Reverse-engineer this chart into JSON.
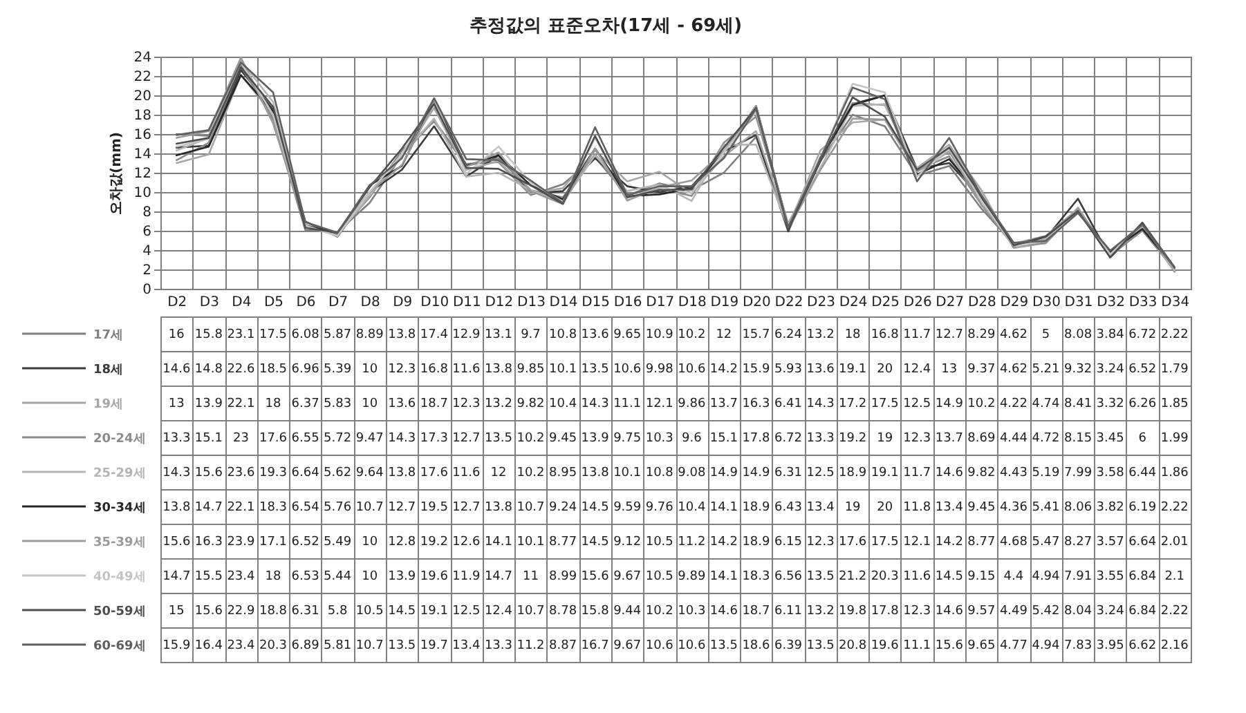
{
  "chart_data": {
    "type": "line",
    "title": "추정값의 표준오차(17세 - 69세)",
    "ylabel": "오차값(mm)",
    "categories": [
      "D2",
      "D3",
      "D4",
      "D5",
      "D6",
      "D7",
      "D8",
      "D9",
      "D10",
      "D11",
      "D12",
      "D13",
      "D14",
      "D15",
      "D16",
      "D17",
      "D18",
      "D19",
      "D20",
      "D22",
      "D23",
      "D24",
      "D25",
      "D26",
      "D27",
      "D28",
      "D29",
      "D30",
      "D31",
      "D32",
      "D33",
      "D34"
    ],
    "ylim": [
      0,
      24
    ],
    "yticks": [
      0,
      2,
      4,
      6,
      8,
      10,
      12,
      14,
      16,
      18,
      20,
      22,
      24
    ],
    "grid": true,
    "legend": "bottom left",
    "data_labels": true,
    "marker": "none",
    "line_style": "solid",
    "series": [
      {
        "name": "17세",
        "color": "#7f7f7f",
        "values": [
          16,
          15.8,
          23.1,
          17.5,
          6.08,
          5.87,
          8.89,
          13.8,
          17.4,
          12.9,
          13.1,
          9.7,
          10.8,
          13.6,
          9.65,
          10.9,
          10.2,
          12,
          15.7,
          6.24,
          13.2,
          18,
          16.8,
          11.7,
          12.7,
          8.29,
          4.62,
          5,
          8.08,
          3.84,
          6.72,
          2.22
        ]
      },
      {
        "name": "18세",
        "color": "#3a3a3a",
        "values": [
          14.6,
          14.8,
          22.6,
          18.5,
          6.96,
          5.39,
          10,
          12.3,
          16.8,
          11.6,
          13.8,
          9.85,
          10.1,
          13.5,
          10.6,
          9.98,
          10.6,
          14.2,
          15.9,
          5.93,
          13.6,
          19.1,
          20,
          12.4,
          13,
          9.37,
          4.62,
          5.21,
          9.32,
          3.24,
          6.52,
          1.79
        ]
      },
      {
        "name": "19세",
        "color": "#a6a6a6",
        "values": [
          13,
          13.9,
          22.1,
          18,
          6.37,
          5.83,
          10,
          13.6,
          18.7,
          12.3,
          13.2,
          9.82,
          10.4,
          14.3,
          11.1,
          12.1,
          9.86,
          13.7,
          16.3,
          6.41,
          14.3,
          17.2,
          17.5,
          12.5,
          14.9,
          10.2,
          4.22,
          4.74,
          8.41,
          3.32,
          6.26,
          1.85
        ]
      },
      {
        "name": "20-24세",
        "color": "#8c8c8c",
        "values": [
          13.3,
          15.1,
          23,
          17.6,
          6.55,
          5.72,
          9.47,
          14.3,
          17.3,
          12.7,
          13.5,
          10.2,
          9.45,
          13.9,
          9.75,
          10.3,
          9.6,
          15.1,
          17.8,
          6.72,
          13.3,
          19.2,
          19,
          12.3,
          13.7,
          8.69,
          4.44,
          4.72,
          8.15,
          3.45,
          6,
          1.99
        ]
      },
      {
        "name": "25-29세",
        "color": "#b4b4b4",
        "values": [
          14.3,
          15.6,
          23.6,
          19.3,
          6.64,
          5.62,
          9.64,
          13.8,
          17.6,
          11.6,
          12,
          10.2,
          8.95,
          13.8,
          10.1,
          10.8,
          9.08,
          14.9,
          14.9,
          6.31,
          12.5,
          18.9,
          19.1,
          11.7,
          14.6,
          9.82,
          4.43,
          5.19,
          7.99,
          3.58,
          6.44,
          1.86
        ]
      },
      {
        "name": "30-34세",
        "color": "#262626",
        "values": [
          13.8,
          14.7,
          22.1,
          18.3,
          6.54,
          5.76,
          10.7,
          12.7,
          19.5,
          12.7,
          13.8,
          10.7,
          9.24,
          14.5,
          9.59,
          9.76,
          10.4,
          14.1,
          18.9,
          6.43,
          13.4,
          19,
          20,
          11.8,
          13.4,
          9.45,
          4.36,
          5.41,
          8.06,
          3.82,
          6.19,
          2.22
        ]
      },
      {
        "name": "35-39세",
        "color": "#9a9a9a",
        "values": [
          15.6,
          16.3,
          23.9,
          17.1,
          6.52,
          5.49,
          10,
          12.8,
          19.2,
          12.6,
          14.1,
          10.1,
          8.77,
          14.5,
          9.12,
          10.5,
          11.2,
          14.2,
          18.9,
          6.15,
          12.3,
          17.6,
          17.5,
          12.1,
          14.2,
          8.77,
          4.68,
          5.47,
          8.27,
          3.57,
          6.64,
          2.01
        ]
      },
      {
        "name": "40-49세",
        "color": "#c4c4c4",
        "values": [
          14.7,
          15.5,
          23.4,
          18,
          6.53,
          5.44,
          10,
          13.9,
          19.6,
          11.9,
          14.7,
          11,
          8.99,
          15.6,
          9.67,
          10.5,
          9.89,
          14.1,
          18.3,
          6.56,
          13.5,
          21.2,
          20.3,
          11.6,
          14.5,
          9.15,
          4.4,
          4.94,
          7.91,
          3.55,
          6.84,
          2.1
        ]
      },
      {
        "name": "50-59세",
        "color": "#4d4d4d",
        "values": [
          15,
          15.6,
          22.9,
          18.8,
          6.31,
          5.8,
          10.5,
          14.5,
          19.1,
          12.5,
          12.4,
          10.7,
          8.78,
          15.8,
          9.44,
          10.2,
          10.3,
          14.6,
          18.7,
          6.11,
          13.2,
          19.8,
          17.8,
          12.3,
          14.6,
          9.57,
          4.49,
          5.42,
          8.04,
          3.24,
          6.84,
          2.22
        ]
      },
      {
        "name": "60-69세",
        "color": "#5f5f5f",
        "values": [
          15.9,
          16.4,
          23.4,
          20.3,
          6.89,
          5.81,
          10.7,
          13.5,
          19.7,
          13.4,
          13.3,
          11.2,
          8.87,
          16.7,
          9.67,
          10.6,
          10.6,
          13.5,
          18.6,
          6.39,
          13.5,
          20.8,
          19.6,
          11.1,
          15.6,
          9.65,
          4.77,
          4.94,
          7.83,
          3.95,
          6.62,
          2.16
        ]
      }
    ]
  }
}
